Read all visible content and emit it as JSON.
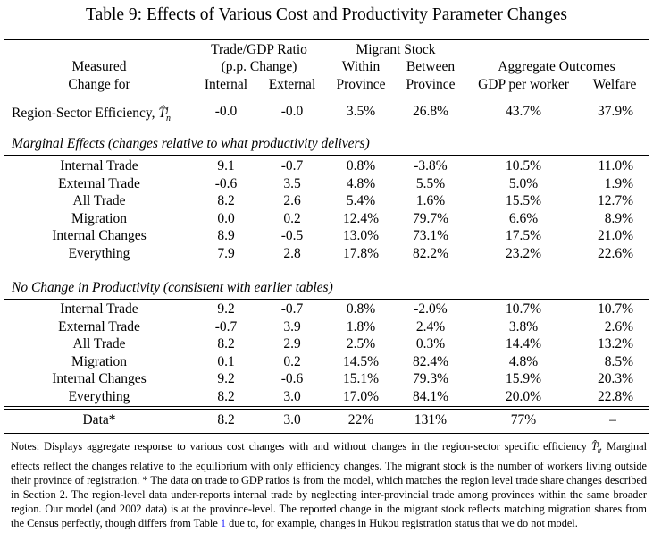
{
  "title": "Table 9: Effects of Various Cost and Productivity Parameter Changes",
  "header": {
    "measured_l1": "Measured",
    "measured_l2": "Change for",
    "trade_group": "Trade/GDP Ratio",
    "trade_sub": "(p.p. Change)",
    "trade_internal": "Internal",
    "trade_external": "External",
    "migrant_group": "Migrant Stock",
    "within_l1": "Within",
    "within_l2": "Province",
    "between_l1": "Between",
    "between_l2": "Province",
    "agg_group": "Aggregate Outcomes",
    "gdp": "GDP per worker",
    "welfare": "Welfare"
  },
  "region_row": {
    "label": "Region-Sector Efficiency,",
    "symbol": "T̂",
    "sup": "j",
    "sub": "n",
    "values": [
      "-0.0",
      "-0.0",
      "3.5%",
      "26.8%",
      "43.7%",
      "37.9%"
    ]
  },
  "sections": [
    {
      "heading": "Marginal Effects (changes relative to what productivity delivers)",
      "rows": [
        {
          "label": "Internal Trade",
          "values": [
            "9.1",
            "-0.7",
            "0.8%",
            "-3.8%",
            "10.5%",
            "11.0%"
          ]
        },
        {
          "label": "External Trade",
          "values": [
            "-0.6",
            "3.5",
            "4.8%",
            "5.5%",
            "5.0%",
            "1.9%"
          ]
        },
        {
          "label": "All Trade",
          "values": [
            "8.2",
            "2.6",
            "5.4%",
            "1.6%",
            "15.5%",
            "12.7%"
          ]
        },
        {
          "label": "Migration",
          "values": [
            "0.0",
            "0.2",
            "12.4%",
            "79.7%",
            "6.6%",
            "8.9%"
          ]
        },
        {
          "label": "Internal Changes",
          "values": [
            "8.9",
            "-0.5",
            "13.0%",
            "73.1%",
            "17.5%",
            "21.0%"
          ]
        },
        {
          "label": "Everything",
          "values": [
            "7.9",
            "2.8",
            "17.8%",
            "82.2%",
            "23.2%",
            "22.6%"
          ]
        }
      ]
    },
    {
      "heading": "No Change in Productivity (consistent with earlier tables)",
      "rows": [
        {
          "label": "Internal Trade",
          "values": [
            "9.2",
            "-0.7",
            "0.8%",
            "-2.0%",
            "10.7%",
            "10.7%"
          ]
        },
        {
          "label": "External Trade",
          "values": [
            "-0.7",
            "3.9",
            "1.8%",
            "2.4%",
            "3.8%",
            "2.6%"
          ]
        },
        {
          "label": "All Trade",
          "values": [
            "8.2",
            "2.9",
            "2.5%",
            "0.3%",
            "14.4%",
            "13.2%"
          ]
        },
        {
          "label": "Migration",
          "values": [
            "0.1",
            "0.2",
            "14.5%",
            "82.4%",
            "4.8%",
            "8.5%"
          ]
        },
        {
          "label": "Internal Changes",
          "values": [
            "9.2",
            "-0.6",
            "15.1%",
            "79.3%",
            "15.9%",
            "20.3%"
          ]
        },
        {
          "label": "Everything",
          "values": [
            "8.2",
            "3.0",
            "17.0%",
            "84.1%",
            "20.0%",
            "22.8%"
          ]
        }
      ]
    }
  ],
  "data_row": {
    "label": "Data*",
    "values": [
      "8.2",
      "3.0",
      "22%",
      "131%",
      "77%",
      "–"
    ]
  },
  "notes": {
    "p1": "Notes: Displays aggregate response to various cost changes with and without changes in the region-sector specific efficiency ",
    "p1_sym": "T̂",
    "p1_sup": "j",
    "p1_sub": "n",
    "p2": ". Marginal effects reflect the changes relative to the equilibrium with only efficiency changes. The migrant stock is the number of workers living outside their province of registration. * The data on trade to GDP ratios is from the model, which matches the region level trade share changes described in Section 2. The region-level data under-reports internal trade by neglecting inter-provincial trade among provinces within the same broader region. Our model (and 2002 data) is at the province-level. The reported change in the migrant stock reflects matching migration shares from the Census perfectly, though differs from Table ",
    "ref": "1",
    "p3": " due to, for example, changes in Hukou registration status that we do not model."
  }
}
